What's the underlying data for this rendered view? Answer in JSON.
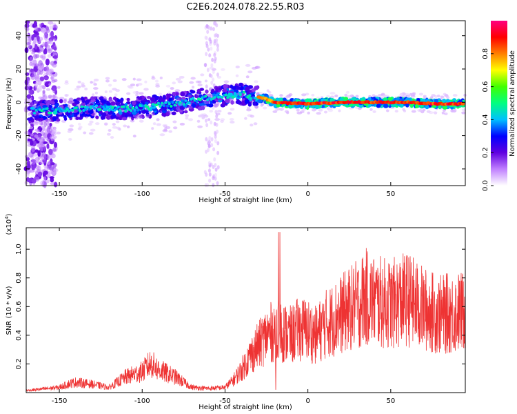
{
  "title": "C2E6.2024.078.22.55.R03",
  "chart_data": [
    {
      "type": "heatmap",
      "xlabel": "Height of straight line (km)",
      "ylabel": "Frequency (Hz)",
      "xlim": [
        -170,
        95
      ],
      "ylim": [
        -50,
        49
      ],
      "xticks": [
        -150,
        -100,
        -50,
        0,
        50
      ],
      "yticks": [
        -40,
        -20,
        0,
        20,
        40
      ],
      "ridge": {
        "x": [
          -165,
          -150,
          -130,
          -110,
          -90,
          -75,
          -60,
          -50,
          -40,
          -30,
          -25,
          -20,
          0,
          20,
          40,
          60,
          80,
          95
        ],
        "y": [
          -5,
          -5,
          -3,
          -4,
          -2,
          0,
          3,
          4,
          5,
          3,
          2,
          0,
          -1,
          0,
          0,
          0,
          -1,
          -1
        ]
      },
      "colorbar": {
        "label": "Normalized spectral amplitude",
        "ticks": [
          0.0,
          0.2,
          0.4,
          0.6,
          0.8
        ],
        "range": [
          0,
          1
        ],
        "colors": [
          "#ffffff",
          "#c080ff",
          "#6000e0",
          "#0000ff",
          "#00c0ff",
          "#00ff80",
          "#40ff00",
          "#ffff00",
          "#ff8000",
          "#ff0000",
          "#ff0080"
        ]
      }
    },
    {
      "type": "line",
      "xlabel": "Height of straight line (km)",
      "ylabel": "SNR (10 * v/v)",
      "multiplier": "(x10",
      "multiplier_exp": "4",
      "multiplier_close": ")",
      "xlim": [
        -170,
        95
      ],
      "ylim": [
        0,
        1.15
      ],
      "xticks": [
        -150,
        -100,
        -50,
        0,
        50
      ],
      "yticks": [
        0.2,
        0.4,
        0.6,
        0.8,
        1.0
      ],
      "ytick_labels": [
        "0.2",
        "0.4",
        "0.6",
        "0.8",
        "1.0"
      ],
      "series": [
        {
          "color": "#ee3333",
          "envelope_x": [
            -170,
            -150,
            -145,
            -140,
            -130,
            -120,
            -110,
            -100,
            -95,
            -90,
            -80,
            -70,
            -60,
            -50,
            -45,
            -40,
            -35,
            -30,
            -25,
            -20,
            -15,
            -10,
            -5,
            0,
            5,
            10,
            20,
            30,
            35,
            40,
            50,
            60,
            70,
            80,
            95
          ],
          "envelope_y": [
            0.02,
            0.05,
            0.08,
            0.1,
            0.08,
            0.05,
            0.15,
            0.2,
            0.28,
            0.22,
            0.15,
            0.05,
            0.04,
            0.05,
            0.12,
            0.22,
            0.35,
            0.45,
            0.55,
            0.6,
            0.58,
            0.55,
            0.62,
            0.6,
            0.55,
            0.65,
            0.75,
            0.85,
            0.92,
            0.88,
            0.85,
            0.9,
            0.8,
            0.75,
            0.78
          ]
        }
      ]
    }
  ]
}
